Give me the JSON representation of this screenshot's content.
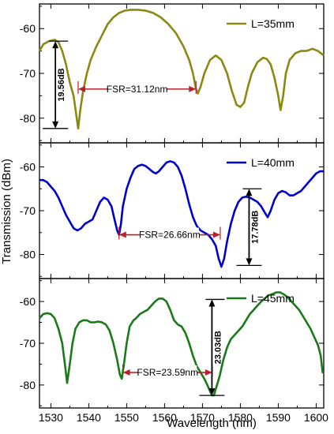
{
  "chart_data": {
    "type": "line",
    "xlabel": "Wavelength (nm)",
    "ylabel": "Transmission (dBm)",
    "xlim": [
      1527,
      1602
    ],
    "x_ticks": [
      "1530",
      "1540",
      "1550",
      "1560",
      "1570",
      "1580",
      "1590",
      "1600"
    ],
    "panels": [
      {
        "legend": "L=35mm",
        "color": "#8a8a12",
        "ylim": [
          -85.5,
          -54.5
        ],
        "y_ticks": [
          "-60",
          "-70",
          "-80"
        ],
        "points": [
          [
            1527,
            -65
          ],
          [
            1528,
            -63.5
          ],
          [
            1529.5,
            -62.8
          ],
          [
            1531,
            -62.5
          ],
          [
            1532,
            -63
          ],
          [
            1533,
            -65
          ],
          [
            1534,
            -68
          ],
          [
            1535,
            -72
          ],
          [
            1536,
            -75
          ],
          [
            1536.5,
            -78
          ],
          [
            1537.2,
            -82.3
          ],
          [
            1537.8,
            -78
          ],
          [
            1538.5,
            -74
          ],
          [
            1539.5,
            -70
          ],
          [
            1540.5,
            -67
          ],
          [
            1542,
            -64
          ],
          [
            1543.5,
            -61.5
          ],
          [
            1545,
            -59
          ],
          [
            1546.5,
            -57.5
          ],
          [
            1548,
            -56.5
          ],
          [
            1549.5,
            -56
          ],
          [
            1551,
            -55.8
          ],
          [
            1553,
            -55.8
          ],
          [
            1555,
            -56
          ],
          [
            1557,
            -56.5
          ],
          [
            1559,
            -57.5
          ],
          [
            1561,
            -59
          ],
          [
            1563,
            -61
          ],
          [
            1565,
            -64
          ],
          [
            1566.5,
            -67
          ],
          [
            1567.5,
            -70
          ],
          [
            1568.3,
            -73.5
          ],
          [
            1568.8,
            -74.5
          ],
          [
            1569.5,
            -73
          ],
          [
            1570.5,
            -70
          ],
          [
            1572,
            -67
          ],
          [
            1573.5,
            -66
          ],
          [
            1575,
            -67
          ],
          [
            1576.5,
            -70
          ],
          [
            1577.8,
            -74
          ],
          [
            1579,
            -77
          ],
          [
            1580,
            -77.5
          ],
          [
            1581,
            -76.5
          ],
          [
            1582,
            -73
          ],
          [
            1583,
            -70
          ],
          [
            1584.5,
            -67.5
          ],
          [
            1586,
            -66.5
          ],
          [
            1587,
            -66.8
          ],
          [
            1588,
            -68
          ],
          [
            1589,
            -71
          ],
          [
            1590,
            -75
          ],
          [
            1590.6,
            -78.2
          ],
          [
            1591.3,
            -75
          ],
          [
            1592,
            -70
          ],
          [
            1593,
            -67
          ],
          [
            1594.5,
            -65.5
          ],
          [
            1596,
            -65
          ],
          [
            1597.5,
            -65
          ],
          [
            1599,
            -64.5
          ],
          [
            1600.5,
            -65
          ],
          [
            1602,
            -66
          ]
        ],
        "arrow_label": "FSR=31.12nm",
        "arrow_x": [
          1537.2,
          1568.3
        ],
        "arrow_y": -73.5,
        "depth_label": "19.56dB",
        "depth_x": 1531.2,
        "depth_y": [
          -62.8,
          -82.3
        ]
      },
      {
        "legend": "L=40mm",
        "color": "#0000cc",
        "ylim": [
          -85.5,
          -54.5
        ],
        "y_ticks": [
          "-60",
          "-70",
          "-80"
        ],
        "points": [
          [
            1527,
            -63
          ],
          [
            1528,
            -63
          ],
          [
            1529,
            -63.5
          ],
          [
            1530,
            -64.5
          ],
          [
            1531,
            -65.5
          ],
          [
            1532,
            -67
          ],
          [
            1533,
            -69
          ],
          [
            1534,
            -71
          ],
          [
            1535,
            -72.5
          ],
          [
            1536,
            -74
          ],
          [
            1537,
            -74.5
          ],
          [
            1538,
            -74
          ],
          [
            1539,
            -73
          ],
          [
            1540,
            -72.5
          ],
          [
            1541,
            -72
          ],
          [
            1542,
            -70
          ],
          [
            1543,
            -68
          ],
          [
            1544,
            -67
          ],
          [
            1545,
            -67.5
          ],
          [
            1546,
            -69
          ],
          [
            1546.8,
            -72
          ],
          [
            1547.5,
            -74.5
          ],
          [
            1548,
            -75.5
          ],
          [
            1548.5,
            -73
          ],
          [
            1549,
            -69
          ],
          [
            1550,
            -65
          ],
          [
            1551,
            -62.5
          ],
          [
            1552,
            -60.5
          ],
          [
            1553,
            -59.8
          ],
          [
            1554,
            -59.5
          ],
          [
            1555,
            -59.8
          ],
          [
            1556,
            -60.5
          ],
          [
            1557,
            -61.2
          ],
          [
            1557.7,
            -61.5
          ],
          [
            1558.5,
            -61
          ],
          [
            1559.5,
            -60
          ],
          [
            1560.5,
            -59
          ],
          [
            1561.5,
            -58.7
          ],
          [
            1562.5,
            -59
          ],
          [
            1563.5,
            -60
          ],
          [
            1564.5,
            -62
          ],
          [
            1565.5,
            -65
          ],
          [
            1566.5,
            -68.5
          ],
          [
            1567.5,
            -71.5
          ],
          [
            1568.5,
            -73.5
          ],
          [
            1569.5,
            -74.5
          ],
          [
            1570.5,
            -75
          ],
          [
            1571.5,
            -75.5
          ],
          [
            1572.5,
            -76.5
          ],
          [
            1573.5,
            -78
          ],
          [
            1574.3,
            -81
          ],
          [
            1575,
            -82.8
          ],
          [
            1575.7,
            -81
          ],
          [
            1576.5,
            -77
          ],
          [
            1577.5,
            -73
          ],
          [
            1578.5,
            -70
          ],
          [
            1579.5,
            -68
          ],
          [
            1580.5,
            -67
          ],
          [
            1581.5,
            -66.8
          ],
          [
            1582.5,
            -67
          ],
          [
            1583.5,
            -67.5
          ],
          [
            1584.5,
            -68
          ],
          [
            1585.5,
            -69
          ],
          [
            1586.5,
            -70.5
          ],
          [
            1587.2,
            -71.5
          ],
          [
            1588,
            -70
          ],
          [
            1589,
            -67.5
          ],
          [
            1590,
            -66
          ],
          [
            1591,
            -65.5
          ],
          [
            1592,
            -65.8
          ],
          [
            1593,
            -66.5
          ],
          [
            1594,
            -66.5
          ],
          [
            1595,
            -66
          ],
          [
            1596,
            -65.5
          ],
          [
            1597,
            -64.5
          ],
          [
            1598,
            -63.5
          ],
          [
            1599,
            -62.5
          ],
          [
            1600,
            -61.5
          ],
          [
            1601,
            -61
          ],
          [
            1602,
            -61
          ]
        ],
        "arrow_label": "FSR=26.66nm",
        "arrow_x": [
          1548,
          1574.7
        ],
        "arrow_y": -75.5,
        "depth_label": "17.78dB",
        "depth_x": 1582.3,
        "depth_y": [
          -65,
          -82.5
        ]
      },
      {
        "legend": "L=45mm",
        "color": "#1a7a1a",
        "ylim": [
          -85.5,
          -54.5
        ],
        "y_ticks": [
          "-60",
          "-70",
          "-80"
        ],
        "points": [
          [
            1527,
            -64
          ],
          [
            1528,
            -63
          ],
          [
            1529,
            -62.8
          ],
          [
            1530,
            -63
          ],
          [
            1531,
            -64
          ],
          [
            1532,
            -66.5
          ],
          [
            1533,
            -70
          ],
          [
            1533.7,
            -75
          ],
          [
            1534.3,
            -79.5
          ],
          [
            1535,
            -75
          ],
          [
            1535.7,
            -70
          ],
          [
            1536.5,
            -66.5
          ],
          [
            1537.5,
            -65
          ],
          [
            1538.5,
            -64.5
          ],
          [
            1539.5,
            -64.5
          ],
          [
            1540.5,
            -65
          ],
          [
            1541.5,
            -65
          ],
          [
            1542.5,
            -64.8
          ],
          [
            1543.5,
            -65
          ],
          [
            1544.5,
            -65.5
          ],
          [
            1545.5,
            -67
          ],
          [
            1546.5,
            -70
          ],
          [
            1547.5,
            -74
          ],
          [
            1548.2,
            -77.5
          ],
          [
            1548.7,
            -78.5
          ],
          [
            1549.3,
            -75
          ],
          [
            1550,
            -70
          ],
          [
            1550.8,
            -66
          ],
          [
            1551.8,
            -64.5
          ],
          [
            1552.5,
            -64
          ],
          [
            1553.5,
            -63
          ],
          [
            1554.5,
            -62.5
          ],
          [
            1555.5,
            -62
          ],
          [
            1556.5,
            -61
          ],
          [
            1557.5,
            -60
          ],
          [
            1558.5,
            -59.3
          ],
          [
            1559.5,
            -59.3
          ],
          [
            1560.5,
            -60
          ],
          [
            1561.5,
            -62
          ],
          [
            1562.5,
            -64.5
          ],
          [
            1563.5,
            -65.5
          ],
          [
            1564.5,
            -66
          ],
          [
            1565.5,
            -67.5
          ],
          [
            1566.5,
            -70
          ],
          [
            1567.5,
            -73
          ],
          [
            1568.5,
            -75.5
          ],
          [
            1569.5,
            -77
          ],
          [
            1570.5,
            -78.5
          ],
          [
            1571.3,
            -80
          ],
          [
            1572,
            -81.5
          ],
          [
            1572.5,
            -82.5
          ],
          [
            1573,
            -82.5
          ],
          [
            1573.5,
            -81
          ],
          [
            1574.5,
            -78
          ],
          [
            1575.5,
            -74
          ],
          [
            1576.5,
            -71
          ],
          [
            1577.5,
            -69
          ],
          [
            1578.5,
            -68
          ],
          [
            1579.5,
            -67
          ],
          [
            1580.5,
            -66
          ],
          [
            1581.5,
            -64.5
          ],
          [
            1582.5,
            -63
          ],
          [
            1583.5,
            -62
          ],
          [
            1584.5,
            -61
          ],
          [
            1585.5,
            -60
          ],
          [
            1586.5,
            -59.2
          ],
          [
            1587.5,
            -58.5
          ],
          [
            1588.5,
            -58.2
          ],
          [
            1589.5,
            -57.8
          ],
          [
            1590.5,
            -57.8
          ],
          [
            1591.5,
            -58.3
          ],
          [
            1592.5,
            -59
          ],
          [
            1593.5,
            -60
          ],
          [
            1594.5,
            -61
          ],
          [
            1595.5,
            -62
          ],
          [
            1596.5,
            -63.5
          ],
          [
            1597.5,
            -65
          ],
          [
            1598.5,
            -66.5
          ],
          [
            1599.5,
            -68.5
          ],
          [
            1600.5,
            -70.5
          ],
          [
            1601.2,
            -73
          ],
          [
            1601.7,
            -77
          ],
          [
            1602,
            -77
          ]
        ],
        "arrow_label": "FSR=23.59nm",
        "arrow_x": [
          1549,
          1572.6
        ],
        "arrow_y": -77,
        "depth_label": "23.03dB",
        "depth_x": 1572.5,
        "depth_y": [
          -59.5,
          -82.5
        ]
      }
    ]
  }
}
